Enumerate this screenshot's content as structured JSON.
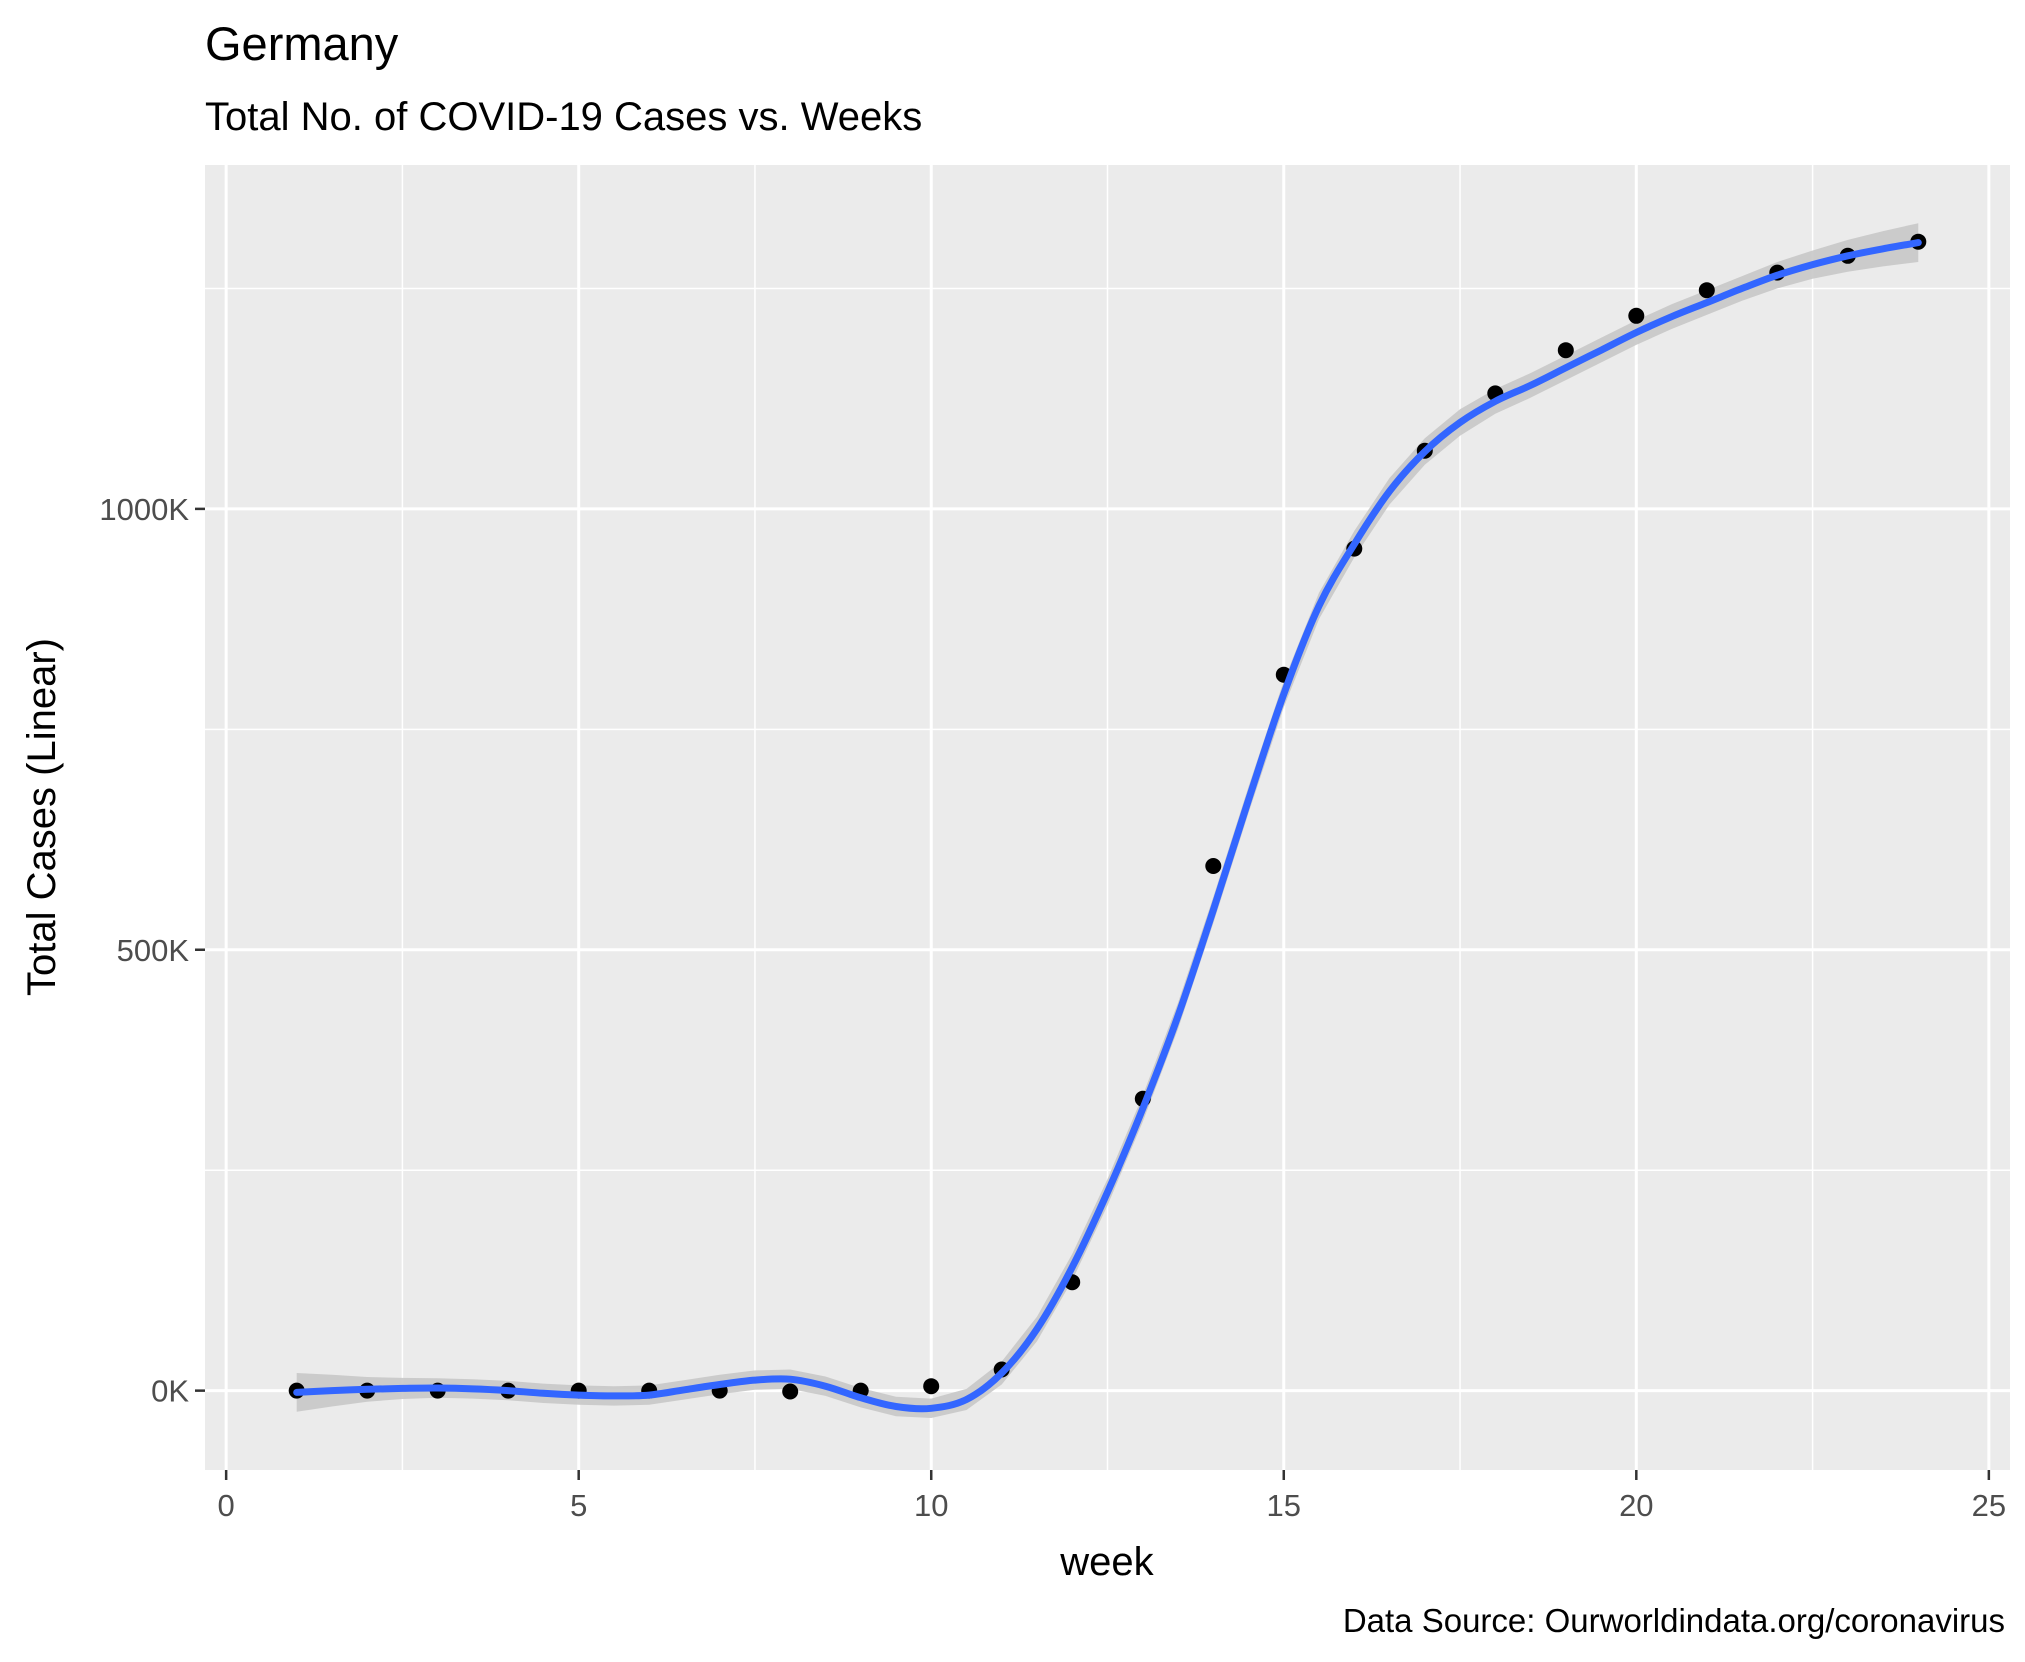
{
  "chart_data": {
    "type": "scatter",
    "title": "Germany",
    "subtitle": "Total No. of COVID-19 Cases vs. Weeks",
    "xlabel": "week",
    "ylabel": "Total Cases (Linear)",
    "caption": "Data Source: Ourworldindata.org/coronavirus",
    "xlim": [
      -0.3,
      25.3
    ],
    "ylim": [
      -90000,
      1390000
    ],
    "x_ticks": [
      0,
      5,
      10,
      15,
      20,
      25
    ],
    "x_tick_labels": [
      "0",
      "5",
      "10",
      "15",
      "20",
      "25"
    ],
    "y_ticks": [
      0,
      500000,
      1000000
    ],
    "y_tick_labels": [
      "0K",
      "500K",
      "1000K"
    ],
    "grid": true,
    "background": "#ebebeb",
    "points": {
      "x": [
        1,
        2,
        3,
        4,
        5,
        6,
        7,
        8,
        9,
        10,
        11,
        12,
        13,
        14,
        15,
        16,
        17,
        18,
        19,
        20,
        21,
        22,
        23,
        24
      ],
      "y": [
        0,
        0,
        0,
        0,
        0,
        0,
        0,
        -1000,
        0,
        5000,
        24000,
        123000,
        331000,
        595000,
        812000,
        955000,
        1066000,
        1131000,
        1180000,
        1219000,
        1248000,
        1268000,
        1287000,
        1303000
      ]
    },
    "smooth": {
      "color": "#3366ff",
      "band_color": "#cccccc",
      "x": [
        1,
        1.5,
        2,
        2.5,
        3,
        3.5,
        4,
        4.5,
        5,
        5.5,
        6,
        6.5,
        7,
        7.5,
        8,
        8.5,
        9,
        9.5,
        10,
        10.5,
        11,
        11.5,
        12,
        12.5,
        13,
        13.5,
        14,
        14.5,
        15,
        15.5,
        16,
        16.5,
        17,
        17.5,
        18,
        18.5,
        19,
        19.5,
        20,
        20.5,
        21,
        21.5,
        22,
        22.5,
        23,
        23.5,
        24
      ],
      "y": [
        -2000,
        0,
        1500,
        2500,
        3000,
        2000,
        0,
        -3000,
        -5000,
        -6000,
        -5000,
        1000,
        7000,
        12000,
        13000,
        5000,
        -8000,
        -18000,
        -20000,
        -10000,
        20000,
        70000,
        140000,
        225000,
        320000,
        425000,
        545000,
        670000,
        790000,
        890000,
        960000,
        1020000,
        1065000,
        1098000,
        1122000,
        1140000,
        1160000,
        1180000,
        1200000,
        1218000,
        1234000,
        1250000,
        1265000,
        1277000,
        1287000,
        1295000,
        1302000
      ],
      "band": [
        22000,
        18000,
        14000,
        12000,
        11000,
        11000,
        11000,
        11000,
        11000,
        11000,
        11000,
        11000,
        11000,
        11000,
        11000,
        11000,
        11000,
        11000,
        11000,
        12000,
        13000,
        14000,
        15000,
        15000,
        15000,
        15000,
        15000,
        15000,
        15000,
        15000,
        15000,
        15000,
        15000,
        15000,
        14000,
        14000,
        14000,
        14000,
        14000,
        14000,
        14000,
        14000,
        15000,
        16000,
        18000,
        20000,
        22000
      ]
    }
  }
}
